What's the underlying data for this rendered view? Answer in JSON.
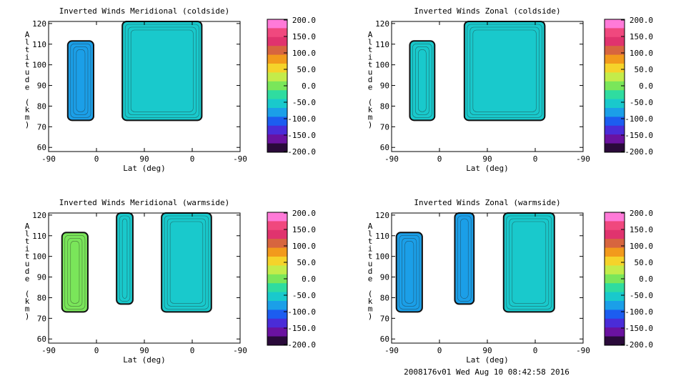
{
  "footer": "2008176v01 Wed Aug 10 08:42:58 2016",
  "chart_data": [
    {
      "type": "heatmap",
      "title": "Inverted Winds Meridional (coldside)",
      "xlabel": "Lat (deg)",
      "ylabel": "Altitude (km)",
      "x_ticks": [
        "-90",
        "0",
        "90",
        "0",
        "-90"
      ],
      "y_ticks": [
        60,
        70,
        80,
        90,
        100,
        110,
        120
      ],
      "ylim": [
        58,
        121
      ],
      "cells": [
        {
          "x0": 0.1,
          "x1": 0.235,
          "y0": 0.24,
          "y1": 0.85,
          "value": -70,
          "label": "left"
        },
        {
          "x0": 0.385,
          "x1": 0.8,
          "y0": 0.24,
          "y1": 1.0,
          "value": -40,
          "label": "center"
        }
      ],
      "colorbar": {
        "ticks": [
          "200.0",
          "150.0",
          "100.0",
          "50.0",
          "0.0",
          "-50.0",
          "-100.0",
          "-150.0",
          "-200.0"
        ],
        "range": [
          -200,
          200
        ]
      }
    },
    {
      "type": "heatmap",
      "title": "Inverted Winds Zonal (coldside)",
      "xlabel": "Lat (deg)",
      "ylabel": "Altitude (km)",
      "x_ticks": [
        "-90",
        "0",
        "90",
        "0",
        "-90"
      ],
      "y_ticks": [
        60,
        70,
        80,
        90,
        100,
        110,
        120
      ],
      "ylim": [
        58,
        121
      ],
      "cells": [
        {
          "x0": 0.095,
          "x1": 0.225,
          "y0": 0.24,
          "y1": 0.85,
          "value": -60,
          "label": "left"
        },
        {
          "x0": 0.38,
          "x1": 0.8,
          "y0": 0.24,
          "y1": 1.0,
          "value": -60,
          "label": "center"
        }
      ],
      "colorbar": {
        "ticks": [
          "200.0",
          "150.0",
          "100.0",
          "50.0",
          "0.0",
          "-50.0",
          "-100.0",
          "-150.0",
          "-200.0"
        ],
        "range": [
          -200,
          200
        ]
      }
    },
    {
      "type": "heatmap",
      "title": "Inverted Winds Meridional (warmside)",
      "xlabel": "Lat (deg)",
      "ylabel": "Altitude (km)",
      "x_ticks": [
        "-90",
        "0",
        "90",
        "0",
        "-90"
      ],
      "y_ticks": [
        60,
        70,
        80,
        90,
        100,
        110,
        120
      ],
      "ylim": [
        58,
        121
      ],
      "cells": [
        {
          "x0": 0.07,
          "x1": 0.205,
          "y0": 0.24,
          "y1": 0.85,
          "value": -10,
          "label": "left"
        },
        {
          "x0": 0.355,
          "x1": 0.44,
          "y0": 0.3,
          "y1": 1.0,
          "value": -60,
          "label": "mid"
        },
        {
          "x0": 0.59,
          "x1": 0.85,
          "y0": 0.24,
          "y1": 1.0,
          "value": -40,
          "label": "right"
        }
      ],
      "colorbar": {
        "ticks": [
          "200.0",
          "150.0",
          "100.0",
          "50.0",
          "0.0",
          "-50.0",
          "-100.0",
          "-150.0",
          "-200.0"
        ],
        "range": [
          -200,
          200
        ]
      }
    },
    {
      "type": "heatmap",
      "title": "Inverted Winds Zonal (warmside)",
      "xlabel": "Lat (deg)",
      "ylabel": "Altitude (km)",
      "x_ticks": [
        "-90",
        "0",
        "90",
        "0",
        "-90"
      ],
      "y_ticks": [
        60,
        70,
        80,
        90,
        100,
        110,
        120
      ],
      "ylim": [
        58,
        121
      ],
      "cells": [
        {
          "x0": 0.025,
          "x1": 0.16,
          "y0": 0.24,
          "y1": 0.85,
          "value": -70,
          "label": "left"
        },
        {
          "x0": 0.33,
          "x1": 0.43,
          "y0": 0.3,
          "y1": 1.0,
          "value": -90,
          "label": "mid"
        },
        {
          "x0": 0.585,
          "x1": 0.85,
          "y0": 0.24,
          "y1": 1.0,
          "value": -60,
          "label": "right"
        }
      ],
      "colorbar": {
        "ticks": [
          "200.0",
          "150.0",
          "100.0",
          "50.0",
          "0.0",
          "-50.0",
          "-100.0",
          "-150.0",
          "-200.0"
        ],
        "range": [
          -200,
          200
        ]
      }
    }
  ]
}
